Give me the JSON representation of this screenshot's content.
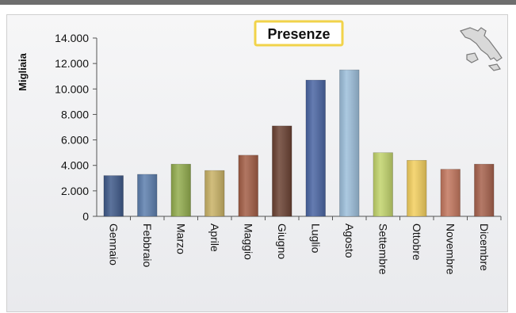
{
  "chart_data": {
    "type": "bar",
    "title": "Presenze",
    "ylabel": "Migliaia",
    "xlabel": "",
    "ylim": [
      0,
      14000
    ],
    "yticks": [
      0,
      2000,
      4000,
      6000,
      8000,
      10000,
      12000,
      14000
    ],
    "ytick_labels": [
      "0",
      "2.000",
      "4.000",
      "6.000",
      "8.000",
      "10.000",
      "12.000",
      "14.000"
    ],
    "categories": [
      "Gennaio",
      "Febbraio",
      "Marzo",
      "Aprile",
      "Maggio",
      "Giugno",
      "Luglio",
      "Agosto",
      "Settembre",
      "Ottobre",
      "Novembre",
      "Dicembre"
    ],
    "values": [
      3200,
      3300,
      4100,
      3600,
      4800,
      7100,
      10700,
      11500,
      5000,
      4400,
      3700,
      4100
    ],
    "bar_colors": [
      "#3f5a8a",
      "#5d7fae",
      "#93ad4e",
      "#c9b266",
      "#a35e46",
      "#6b4233",
      "#4a65a3",
      "#9dbfdb",
      "#c2d46c",
      "#f3cf5e",
      "#c3775e",
      "#a7624d"
    ],
    "grid": false,
    "legend": "none",
    "title_box_colors": {
      "border": "#f1d34a",
      "fill": "#ffffff"
    },
    "decoration": "italy-map-icon"
  }
}
